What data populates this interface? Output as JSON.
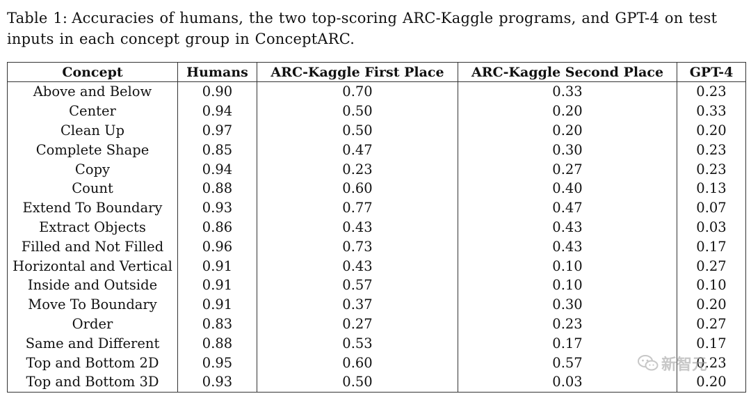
{
  "caption": {
    "label": "Table 1:",
    "text": "Accuracies of humans, the two top-scoring ARC-Kaggle programs, and GPT-4 on test inputs in each concept group in ConceptARC."
  },
  "table": {
    "headers": [
      "Concept",
      "Humans",
      "ARC-Kaggle First Place",
      "ARC-Kaggle Second Place",
      "GPT-4"
    ],
    "rows": [
      [
        "Above and Below",
        "0.90",
        "0.70",
        "0.33",
        "0.23"
      ],
      [
        "Center",
        "0.94",
        "0.50",
        "0.20",
        "0.33"
      ],
      [
        "Clean Up",
        "0.97",
        "0.50",
        "0.20",
        "0.20"
      ],
      [
        "Complete Shape",
        "0.85",
        "0.47",
        "0.30",
        "0.23"
      ],
      [
        "Copy",
        "0.94",
        "0.23",
        "0.27",
        "0.23"
      ],
      [
        "Count",
        "0.88",
        "0.60",
        "0.40",
        "0.13"
      ],
      [
        "Extend To Boundary",
        "0.93",
        "0.77",
        "0.47",
        "0.07"
      ],
      [
        "Extract Objects",
        "0.86",
        "0.43",
        "0.43",
        "0.03"
      ],
      [
        "Filled and Not Filled",
        "0.96",
        "0.73",
        "0.43",
        "0.17"
      ],
      [
        "Horizontal and Vertical",
        "0.91",
        "0.43",
        "0.10",
        "0.27"
      ],
      [
        "Inside and Outside",
        "0.91",
        "0.57",
        "0.10",
        "0.10"
      ],
      [
        "Move To Boundary",
        "0.91",
        "0.37",
        "0.30",
        "0.20"
      ],
      [
        "Order",
        "0.83",
        "0.27",
        "0.23",
        "0.27"
      ],
      [
        "Same and Different",
        "0.88",
        "0.53",
        "0.17",
        "0.17"
      ],
      [
        "Top and Bottom 2D",
        "0.95",
        "0.60",
        "0.57",
        "0.23"
      ],
      [
        "Top and Bottom 3D",
        "0.93",
        "0.50",
        "0.03",
        "0.20"
      ]
    ]
  },
  "watermark": {
    "text": "新智元",
    "icon": "wechat-icon"
  }
}
